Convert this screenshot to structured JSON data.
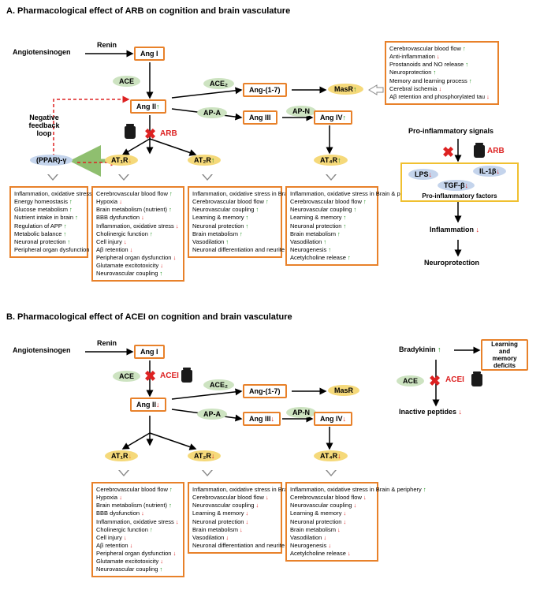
{
  "colors": {
    "orange_border": "#e8812a",
    "yellow_border": "#f0c030",
    "green_oval": "#cde3c1",
    "yellow_oval": "#f5d97a",
    "blue_oval": "#c4d4ec",
    "up_arrow": "#1a8f1a",
    "down_arrow": "#d22",
    "down_arrow_orange": "#e8812a",
    "black_arrow": "#000",
    "red_dashed": "#d22"
  },
  "A": {
    "title": "A. Pharmacological effect of ARB on cognition and brain vasculature",
    "labels": {
      "angiotensinogen": "Angiotensinogen",
      "renin": "Renin",
      "ang1": "Ang I",
      "ace": "ACE",
      "ace2": "ACE₂",
      "ang2": "Ang II",
      "ang17": "Ang-(1-7)",
      "masr": "MasR",
      "apa": "AP-A",
      "apn": "AP-N",
      "ang3": "Ang III",
      "ang4": "Ang IV",
      "negative_feedback": "Negative feedback loop",
      "arb": "ARB",
      "ppar": "(PPAR)-γ",
      "at1r": "AT₁R",
      "at2r": "AT₂R",
      "at4r": "AT₄R",
      "proinflam_signals": "Pro-inflammatory signals",
      "lps": "LPS",
      "il1b": "IL-1β",
      "tgfb": "TGF-β",
      "proinflam_factors": "Pro-inflammatory factors",
      "inflammation": "Inflammation",
      "neuroprotection": "Neuroprotection"
    },
    "effects_masr": [
      {
        "t": "Cerebrovascular blood flow",
        "d": "up"
      },
      {
        "t": "Anti-inflammation",
        "d": "dn"
      },
      {
        "t": "Prostanoids and NO release",
        "d": "up"
      },
      {
        "t": "Neuroprotection",
        "d": "up"
      },
      {
        "t": "Memory and learning process",
        "d": "up"
      },
      {
        "t": "Cerebral ischemia",
        "d": "dn"
      },
      {
        "t": "Aβ retention and phosphorylated tau",
        "d": "dn"
      }
    ],
    "effects_ppar": [
      {
        "t": "Inflammation, oxidative stress in Brain & periphery",
        "d": "dn"
      },
      {
        "t": "Energy homeostasis",
        "d": "up"
      },
      {
        "t": "Glucose metabolism",
        "d": "up"
      },
      {
        "t": "Nutrient intake in brain",
        "d": "up"
      },
      {
        "t": "Regulation of APP",
        "d": "up"
      },
      {
        "t": "Metabolic balance",
        "d": "up"
      },
      {
        "t": "Neuronal protection",
        "d": "up"
      },
      {
        "t": "Peripheral organ dysfunction",
        "d": "dn"
      }
    ],
    "effects_at1r": [
      {
        "t": "Cerebrovascular blood flow",
        "d": "up"
      },
      {
        "t": "Hypoxia",
        "d": "dn"
      },
      {
        "t": "Brain metabolism (nutrient)",
        "d": "up"
      },
      {
        "t": "BBB dysfunction",
        "d": "dn"
      },
      {
        "t": "Inflammation, oxidative stress",
        "d": "dn"
      },
      {
        "t": "Cholinergic function",
        "d": "up"
      },
      {
        "t": "Cell injury",
        "d": "dn"
      },
      {
        "t": "Aβ retention",
        "d": "dn"
      },
      {
        "t": "Peripheral organ dysfunction",
        "d": "dn"
      },
      {
        "t": "Glutamate excitotoxicity",
        "d": "dn"
      },
      {
        "t": "Neurovascular coupling",
        "d": "up"
      }
    ],
    "effects_at2r": [
      {
        "t": "Inflammation, oxidative stress in Brain & periphery",
        "d": "dn"
      },
      {
        "t": "Cerebrovascular blood flow",
        "d": "up"
      },
      {
        "t": "Neurovascular coupling",
        "d": "up"
      },
      {
        "t": "Learning & memory",
        "d": "up"
      },
      {
        "t": "Neuronal protection",
        "d": "up"
      },
      {
        "t": "Brain metabolism",
        "d": "up"
      },
      {
        "t": "Vasodilation",
        "d": "up"
      },
      {
        "t": "Neuronal differentiation and neurite outgrowth",
        "d": "up"
      }
    ],
    "effects_at4r": [
      {
        "t": "Inflammation, oxidative stress in Brain & periphery",
        "d": "dn"
      },
      {
        "t": "Cerebrovascular blood flow",
        "d": "up"
      },
      {
        "t": "Neurovascular coupling",
        "d": "up"
      },
      {
        "t": "Learning & memory",
        "d": "up"
      },
      {
        "t": "Neuronal protection",
        "d": "up"
      },
      {
        "t": "Brain metabolism",
        "d": "up"
      },
      {
        "t": "Vasodilation",
        "d": "up"
      },
      {
        "t": "Neurogenesis",
        "d": "up"
      },
      {
        "t": "Acetylcholine release",
        "d": "up"
      }
    ]
  },
  "B": {
    "title": "B. Pharmacological effect of ACEI on cognition and brain vasculature",
    "labels": {
      "angiotensinogen": "Angiotensinogen",
      "renin": "Renin",
      "ang1": "Ang I",
      "ace": "ACE",
      "acei": "ACEI",
      "ace2": "ACE₂",
      "ang2": "Ang II",
      "ang17": "Ang-(1-7)",
      "masr": "MasR",
      "apa": "AP-A",
      "apn": "AP-N",
      "ang3": "Ang III",
      "ang4": "Ang IV",
      "at1r": "AT₁R",
      "at2r": "AT₂R",
      "at4r": "AT₄R",
      "bradykinin": "Bradykinin",
      "learning_memory_deficits": "Learning and memory deficits",
      "inactive_peptides": "Inactive peptides"
    },
    "effects_at1r": [
      {
        "t": "Cerebrovascular blood flow",
        "d": "up"
      },
      {
        "t": "Hypoxia",
        "d": "dn"
      },
      {
        "t": "Brain metabolism (nutrient)",
        "d": "up"
      },
      {
        "t": "BBB dysfunction",
        "d": "dn"
      },
      {
        "t": "Inflammation, oxidative stress",
        "d": "dn"
      },
      {
        "t": "Cholinergic function",
        "d": "up"
      },
      {
        "t": "Cell injury",
        "d": "dn"
      },
      {
        "t": "Aβ retention",
        "d": "dn"
      },
      {
        "t": "Peripheral organ dysfunction",
        "d": "dn"
      },
      {
        "t": "Glutamate excitotoxicity",
        "d": "dn"
      },
      {
        "t": "Neurovascular coupling",
        "d": "up"
      }
    ],
    "effects_at2r": [
      {
        "t": "Inflammation, oxidative stress in Brain & periphery",
        "d": "up"
      },
      {
        "t": "Cerebrovascular blood flow",
        "d": "dn"
      },
      {
        "t": "Neurovascular coupling",
        "d": "dn"
      },
      {
        "t": "Learning & memory",
        "d": "dn"
      },
      {
        "t": "Neuronal protection",
        "d": "dn"
      },
      {
        "t": "Brain metabolism",
        "d": "dn"
      },
      {
        "t": "Vasodilation",
        "d": "dn"
      },
      {
        "t": "Neuronal differentiation and neurite outgrowth",
        "d": "dn"
      }
    ],
    "effects_at4r": [
      {
        "t": "Inflammation, oxidative stress in Brain & periphery",
        "d": "up"
      },
      {
        "t": "Cerebrovascular blood flow",
        "d": "dn"
      },
      {
        "t": "Neurovascular coupling",
        "d": "dn"
      },
      {
        "t": "Learning & memory",
        "d": "dn"
      },
      {
        "t": "Neuronal protection",
        "d": "dn"
      },
      {
        "t": "Brain metabolism",
        "d": "dn"
      },
      {
        "t": "Vasodilation",
        "d": "dn"
      },
      {
        "t": "Neurogenesis",
        "d": "dn"
      },
      {
        "t": "Acetylcholine release",
        "d": "dn"
      }
    ]
  }
}
